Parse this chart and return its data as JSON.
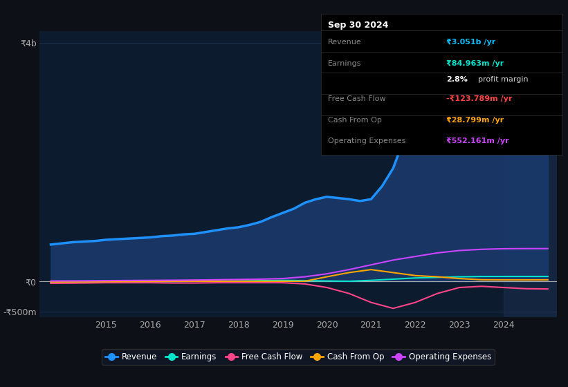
{
  "bg_color": "#0d1117",
  "plot_bg_color": "#0d1b2e",
  "grid_color": "#1e3050",
  "title_box": {
    "date": "Sep 30 2024",
    "rows": [
      {
        "label": "Revenue",
        "value": "₹3.051b /yr",
        "value_color": "#00bfff"
      },
      {
        "label": "Earnings",
        "value": "₹84.963m /yr",
        "value_color": "#00e5cc"
      },
      {
        "label": "",
        "value": "2.8% profit margin",
        "value_color": "#ffffff"
      },
      {
        "label": "Free Cash Flow",
        "value": "-₹123.789m /yr",
        "value_color": "#ff4444"
      },
      {
        "label": "Cash From Op",
        "value": "₹28.799m /yr",
        "value_color": "#ffa500"
      },
      {
        "label": "Operating Expenses",
        "value": "₹552.161m /yr",
        "value_color": "#cc44ff"
      }
    ]
  },
  "ylim": [
    -600,
    4200
  ],
  "yticks_labels": [
    "₹4b",
    "₹0",
    "-₹500m"
  ],
  "yticks_values": [
    4000,
    0,
    -500
  ],
  "xlim_start": 2013.5,
  "xlim_end": 2025.2,
  "xtick_years": [
    2015,
    2016,
    2017,
    2018,
    2019,
    2020,
    2021,
    2022,
    2023,
    2024
  ],
  "series": {
    "Revenue": {
      "color": "#1e90ff",
      "fill_color": "#1a3a6e",
      "linewidth": 2.5,
      "x": [
        2013.75,
        2014.0,
        2014.25,
        2014.5,
        2014.75,
        2015.0,
        2015.25,
        2015.5,
        2015.75,
        2016.0,
        2016.25,
        2016.5,
        2016.75,
        2017.0,
        2017.25,
        2017.5,
        2017.75,
        2018.0,
        2018.25,
        2018.5,
        2018.75,
        2019.0,
        2019.25,
        2019.5,
        2019.75,
        2020.0,
        2020.25,
        2020.5,
        2020.75,
        2021.0,
        2021.25,
        2021.5,
        2021.75,
        2022.0,
        2022.25,
        2022.5,
        2022.75,
        2023.0,
        2023.25,
        2023.5,
        2023.75,
        2024.0,
        2024.25,
        2024.5,
        2024.75,
        2025.0
      ],
      "y": [
        620,
        640,
        660,
        670,
        680,
        700,
        710,
        720,
        730,
        740,
        760,
        770,
        790,
        800,
        830,
        860,
        890,
        910,
        950,
        1000,
        1080,
        1150,
        1220,
        1320,
        1380,
        1420,
        1400,
        1380,
        1350,
        1380,
        1600,
        1900,
        2400,
        3000,
        3400,
        3600,
        3700,
        3750,
        3500,
        3200,
        2900,
        2700,
        2750,
        2900,
        3051,
        3100
      ]
    },
    "Earnings": {
      "color": "#00e5cc",
      "linewidth": 1.5,
      "x": [
        2013.75,
        2014.5,
        2015.0,
        2015.5,
        2016.0,
        2016.5,
        2017.0,
        2017.5,
        2018.0,
        2018.5,
        2019.0,
        2019.5,
        2020.0,
        2020.5,
        2021.0,
        2021.5,
        2022.0,
        2022.5,
        2023.0,
        2023.5,
        2024.0,
        2024.5,
        2025.0
      ],
      "y": [
        -20,
        -15,
        -10,
        -8,
        -5,
        0,
        5,
        8,
        10,
        15,
        20,
        15,
        10,
        5,
        20,
        40,
        60,
        70,
        80,
        85,
        85,
        85,
        85
      ]
    },
    "Free Cash Flow": {
      "color": "#ff4488",
      "linewidth": 1.5,
      "x": [
        2013.75,
        2014.5,
        2015.0,
        2015.5,
        2016.0,
        2016.5,
        2017.0,
        2017.5,
        2018.0,
        2018.5,
        2019.0,
        2019.5,
        2020.0,
        2020.5,
        2021.0,
        2021.5,
        2022.0,
        2022.5,
        2023.0,
        2023.5,
        2024.0,
        2024.5,
        2025.0
      ],
      "y": [
        -30,
        -25,
        -20,
        -20,
        -20,
        -25,
        -25,
        -20,
        -20,
        -20,
        -20,
        -40,
        -100,
        -200,
        -350,
        -450,
        -350,
        -200,
        -100,
        -80,
        -100,
        -120,
        -124
      ]
    },
    "Cash From Op": {
      "color": "#ffa500",
      "linewidth": 1.5,
      "x": [
        2013.75,
        2014.5,
        2015.0,
        2015.5,
        2016.0,
        2016.5,
        2017.0,
        2017.5,
        2018.0,
        2018.5,
        2019.0,
        2019.5,
        2020.0,
        2020.5,
        2021.0,
        2021.5,
        2022.0,
        2022.5,
        2023.0,
        2023.5,
        2024.0,
        2024.5,
        2025.0
      ],
      "y": [
        -5,
        -3,
        0,
        2,
        3,
        5,
        5,
        5,
        5,
        5,
        5,
        5,
        80,
        150,
        200,
        150,
        100,
        80,
        50,
        30,
        28,
        28,
        29
      ]
    },
    "Operating Expenses": {
      "color": "#cc44ff",
      "linewidth": 1.5,
      "x": [
        2013.75,
        2014.5,
        2015.0,
        2015.5,
        2016.0,
        2016.5,
        2017.0,
        2017.5,
        2018.0,
        2018.5,
        2019.0,
        2019.5,
        2020.0,
        2020.5,
        2021.0,
        2021.5,
        2022.0,
        2022.5,
        2023.0,
        2023.5,
        2024.0,
        2024.5,
        2025.0
      ],
      "y": [
        10,
        12,
        15,
        18,
        20,
        22,
        25,
        30,
        35,
        40,
        50,
        80,
        130,
        200,
        280,
        360,
        420,
        480,
        520,
        540,
        550,
        552,
        552
      ]
    }
  },
  "legend": [
    {
      "label": "Revenue",
      "color": "#1e90ff"
    },
    {
      "label": "Earnings",
      "color": "#00e5cc"
    },
    {
      "label": "Free Cash Flow",
      "color": "#ff4488"
    },
    {
      "label": "Cash From Op",
      "color": "#ffa500"
    },
    {
      "label": "Operating Expenses",
      "color": "#cc44ff"
    }
  ],
  "shaded_region_start": 2024.0,
  "shaded_region_end": 2025.2
}
